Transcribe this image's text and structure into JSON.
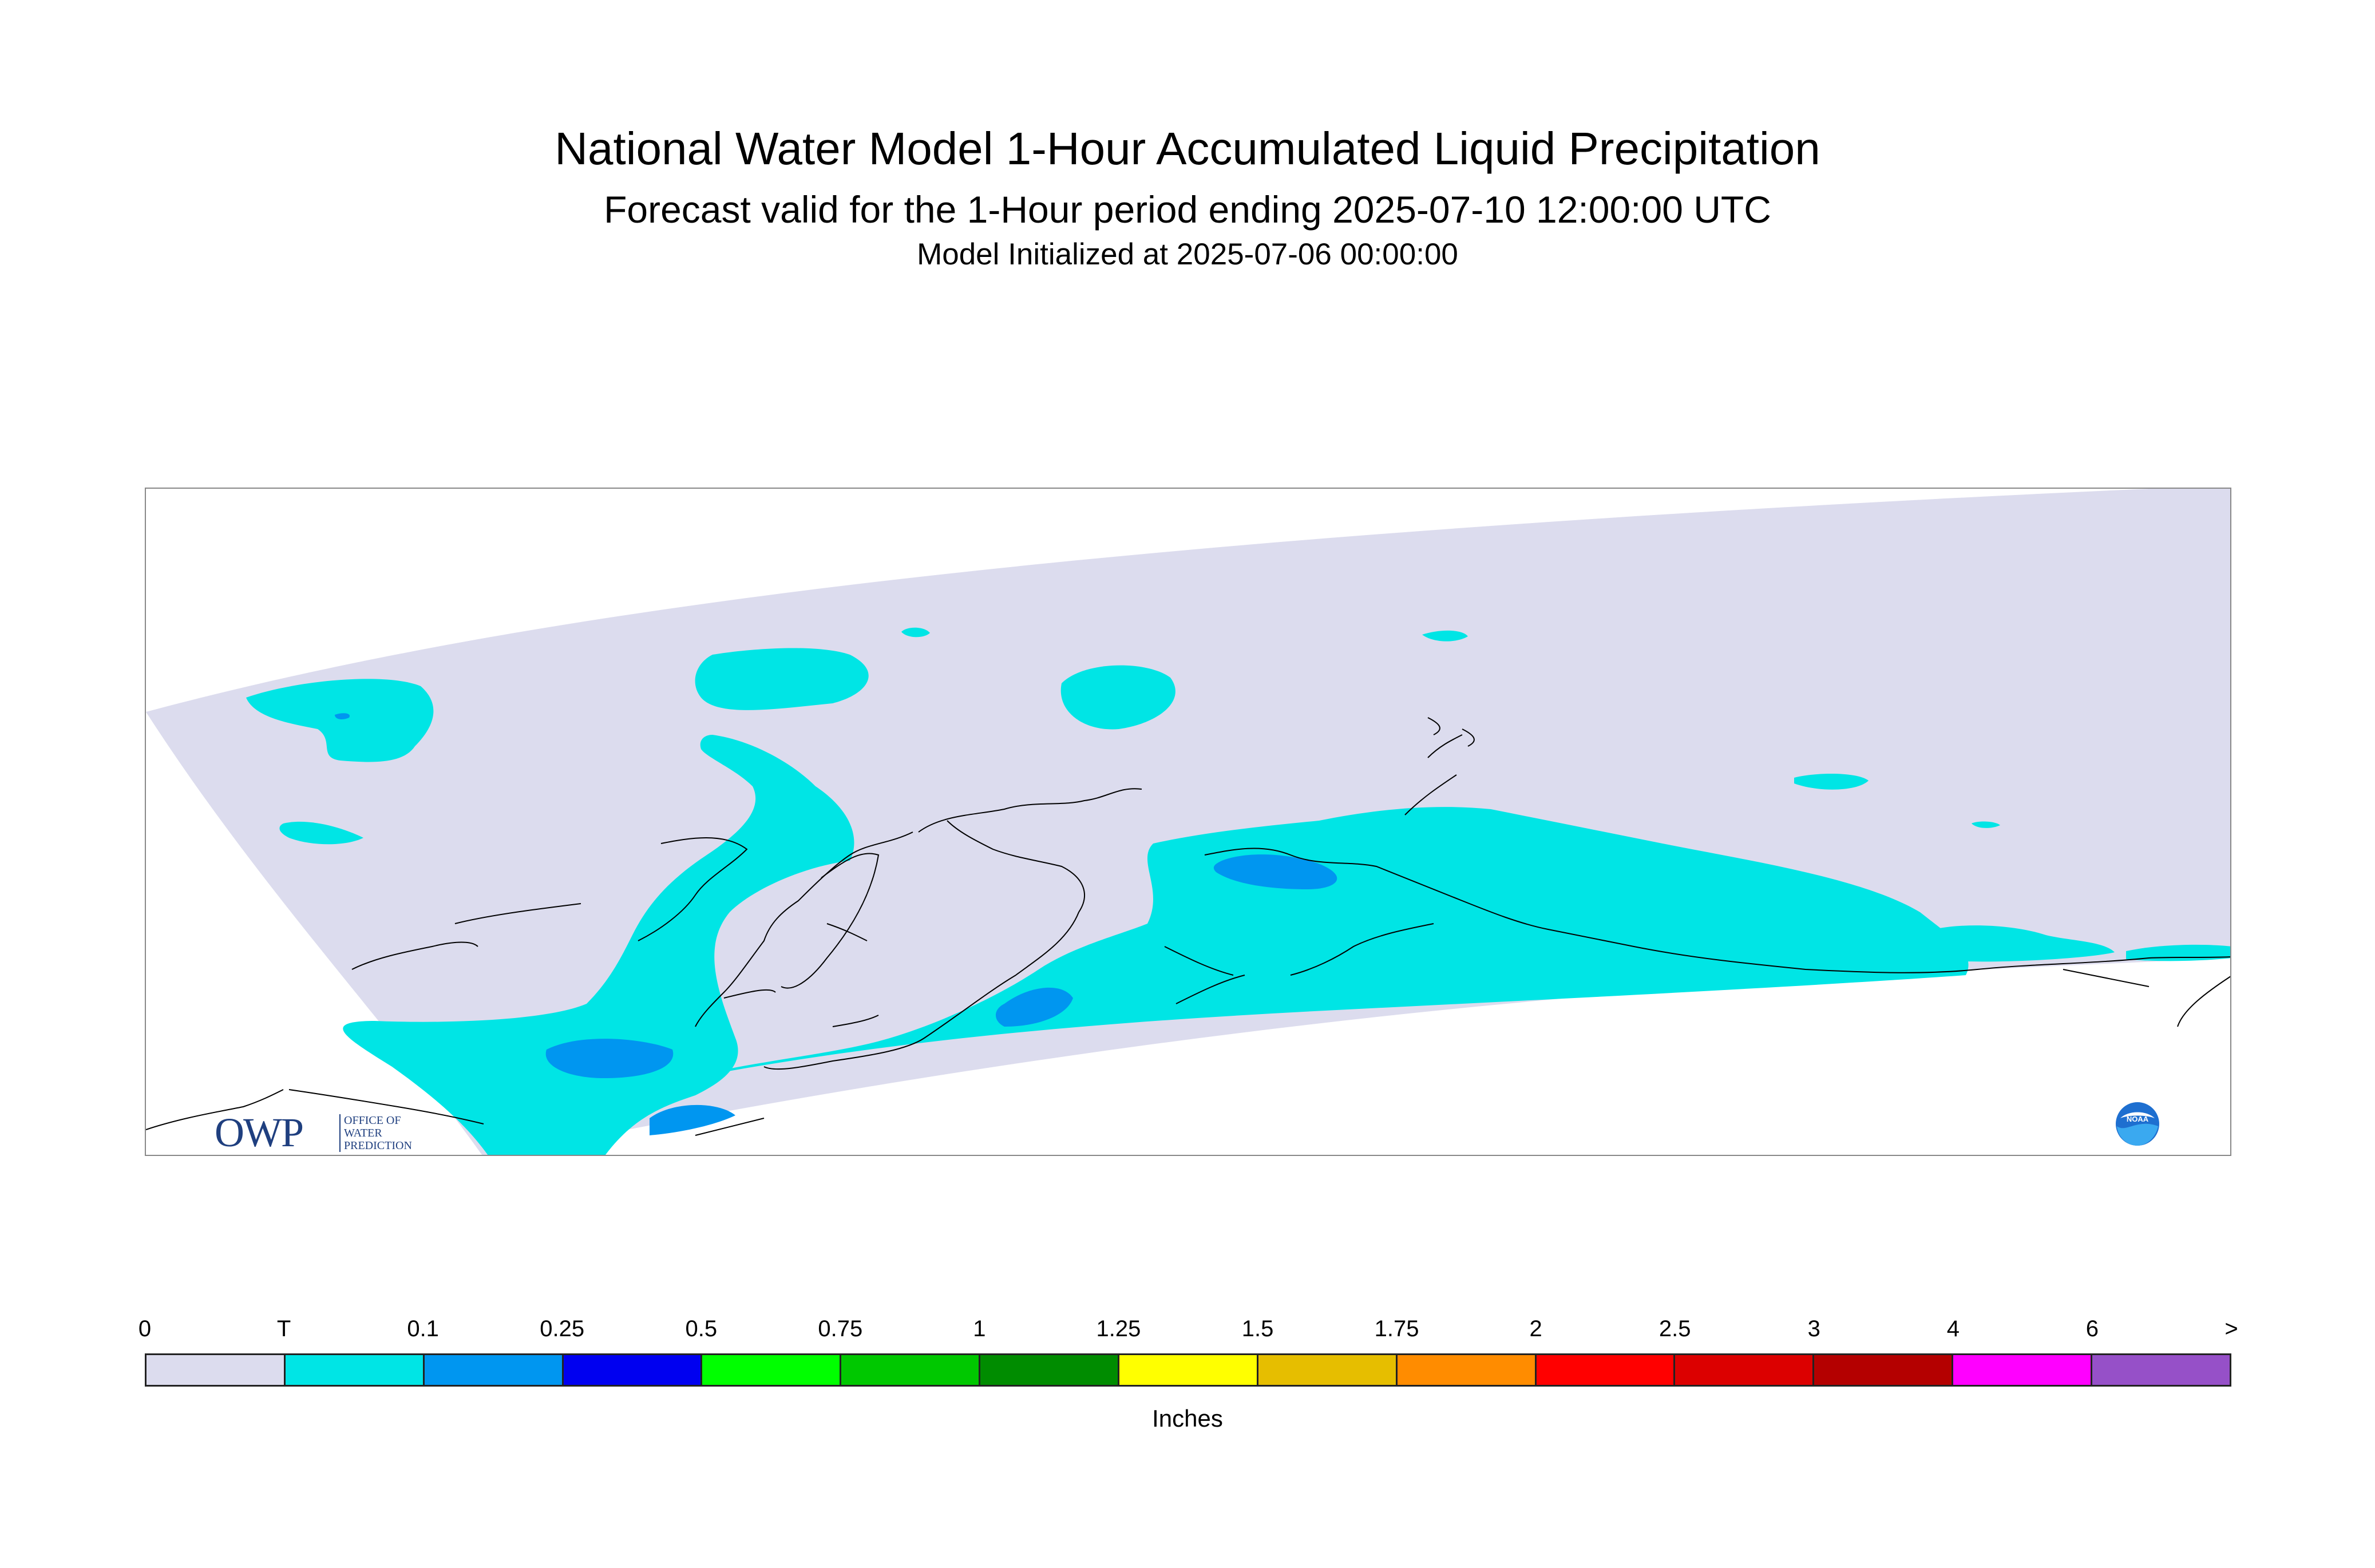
{
  "header": {
    "title": "National Water Model 1-Hour Accumulated Liquid Precipitation",
    "subtitle": "Forecast valid for the 1-Hour period ending 2025-07-10 12:00:00 UTC",
    "init_line": "Model Initialized at 2025-07-06 00:00:00"
  },
  "logos": {
    "owp_main": "OWP",
    "owp_sub_1": "OFFICE OF",
    "owp_sub_2": "WATER",
    "owp_sub_3": "PREDICTION",
    "noaa": "NOAA"
  },
  "legend": {
    "tick_labels": [
      "0",
      "T",
      "0.1",
      "0.25",
      "0.5",
      "0.75",
      "1",
      "1.25",
      "1.5",
      "1.75",
      "2",
      "2.5",
      "3",
      "4",
      "6",
      ">"
    ],
    "colors": [
      "#dcdcee",
      "#00e5e5",
      "#0096f0",
      "#0000f0",
      "#00ff00",
      "#00c800",
      "#008c00",
      "#ffff00",
      "#e6be00",
      "#ff8c00",
      "#ff0000",
      "#dc0000",
      "#b40000",
      "#ff00ff",
      "#9650c8"
    ],
    "units": "Inches"
  },
  "colors": {
    "no_precip": "#dcdcee",
    "trace": "#00e5e5",
    "light": "#0096f0",
    "coast": "#000000",
    "owp_blue": "#1f3f7f"
  }
}
